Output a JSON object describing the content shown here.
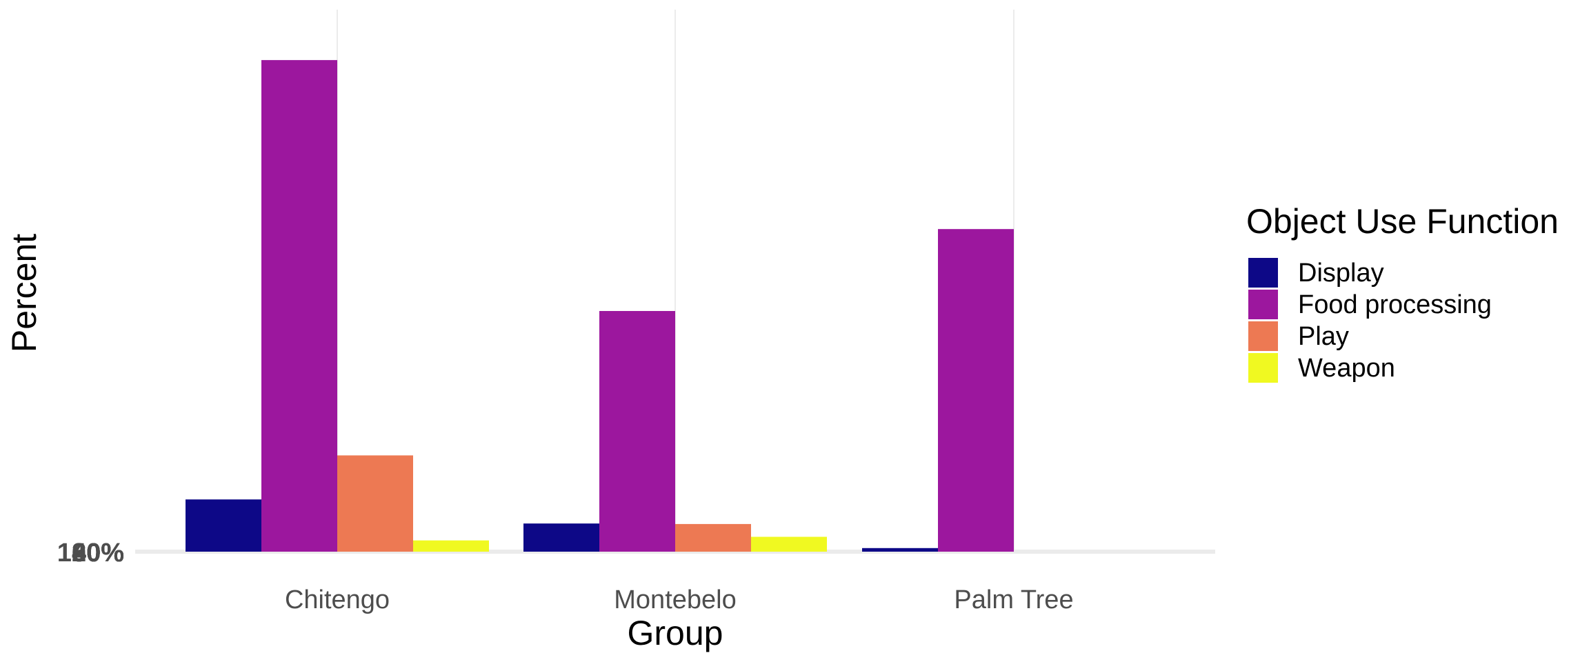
{
  "chart_data": {
    "type": "bar",
    "xlabel": "Group",
    "ylabel": "Percent",
    "categories": [
      "Chitengo",
      "Montebelo",
      "Palm Tree"
    ],
    "series": [
      {
        "name": "Display",
        "color": "#0d0887",
        "values": [
          10.2,
          5.5,
          0.7
        ]
      },
      {
        "name": "Food processing",
        "color": "#9c179e",
        "values": [
          96.0,
          47.0,
          63.0
        ]
      },
      {
        "name": "Play",
        "color": "#ed7953",
        "values": [
          18.8,
          5.4,
          0
        ]
      },
      {
        "name": "Weapon",
        "color": "#f0f921",
        "values": [
          2.2,
          2.9,
          0
        ]
      }
    ],
    "ylim": [
      0,
      100
    ],
    "y_tick_labels": [
      "0%",
      "20%",
      "40%",
      "60%",
      "80%",
      "100%"
    ],
    "legend": {
      "title": "Object Use Function",
      "position": "right"
    },
    "grid": "vertical"
  }
}
